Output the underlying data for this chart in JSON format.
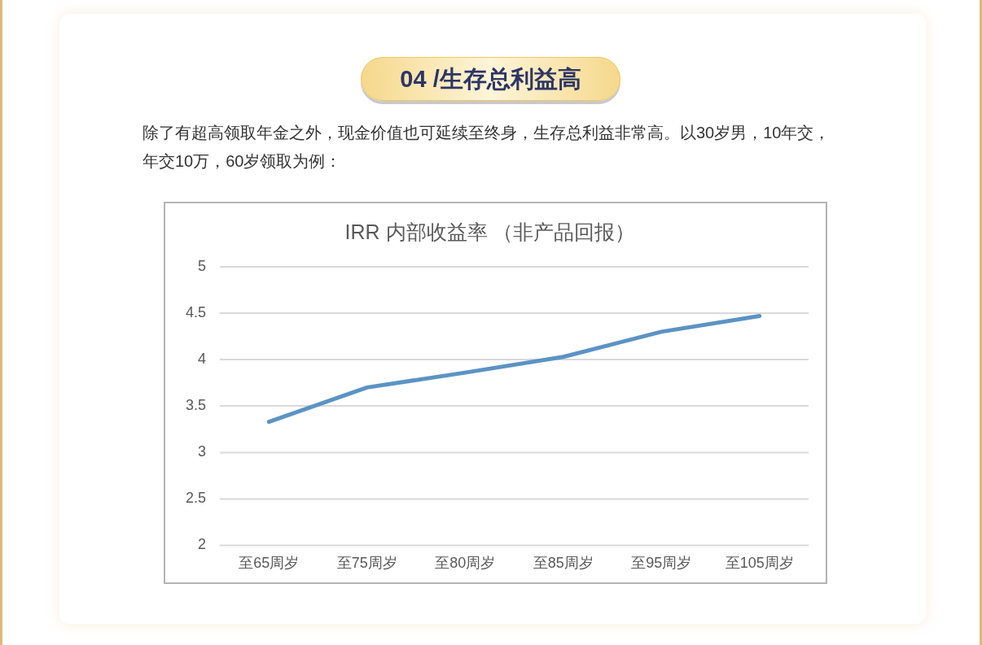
{
  "chart_data": {
    "type": "line",
    "title": "IRR 内部收益率 （非产品回报）",
    "annotations": [
      "04 /生存总利益高",
      "除了有超高领取年金之外，现金价值也可延续至终身，生存总利益非常高。以30岁男，10年交，年交10万，60岁领取为例："
    ],
    "categories": [
      "至65周岁",
      "至75周岁",
      "至80周岁",
      "至85周岁",
      "至95周岁",
      "至105周岁"
    ],
    "values": [
      3.33,
      3.7,
      3.86,
      4.03,
      4.3,
      4.47
    ],
    "color": "#5b93c5",
    "ylim": [
      2,
      5
    ],
    "yticks": [
      2,
      2.5,
      3,
      3.5,
      4,
      4.5,
      5
    ],
    "grid": "y",
    "marker": "none",
    "line_style": "solid"
  }
}
